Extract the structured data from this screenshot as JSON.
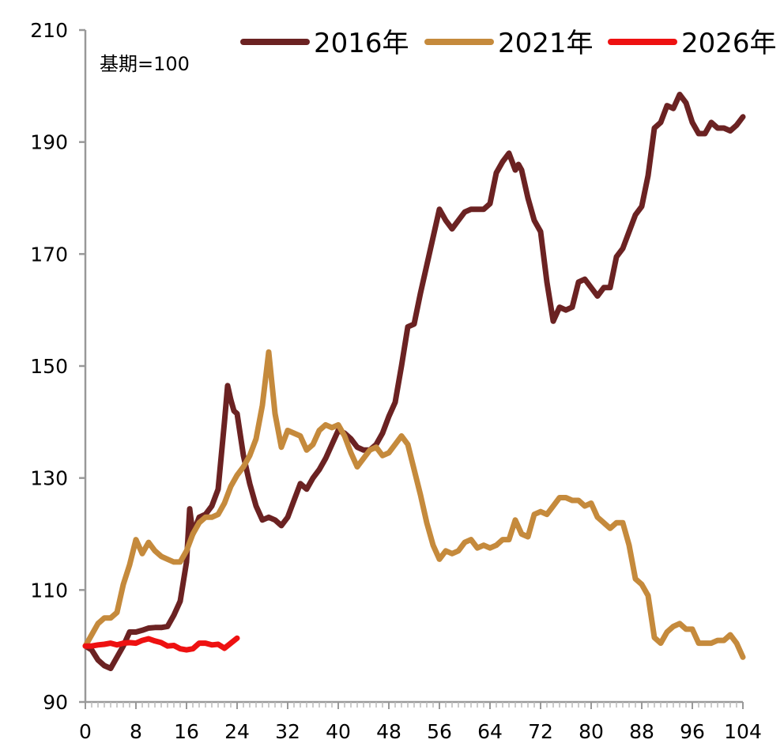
{
  "chart_data": {
    "type": "line",
    "title": "",
    "xlabel": "",
    "ylabel": "",
    "annotation": "基期=100",
    "xlim": [
      0,
      104
    ],
    "ylim": [
      90,
      210
    ],
    "x_ticks": [
      0,
      8,
      16,
      24,
      32,
      40,
      48,
      56,
      64,
      72,
      80,
      88,
      96,
      104
    ],
    "x_tick_labels": [
      "0",
      "8",
      "16",
      "24",
      "32",
      "40",
      "48",
      "56",
      "64",
      "72",
      "80",
      "88",
      "96",
      "104"
    ],
    "y_tick_values": [
      90,
      110,
      130,
      150,
      170,
      190,
      210
    ],
    "y_tick_labels": [
      "90",
      "110",
      "130",
      "150",
      "170",
      "190",
      "210"
    ],
    "grid": false,
    "legend_position": "top-right",
    "series": [
      {
        "name": "2016年",
        "color": "#6b2222",
        "points": [
          [
            0,
            100
          ],
          [
            1,
            99.3
          ],
          [
            2,
            97.5
          ],
          [
            3,
            96.5
          ],
          [
            4,
            96
          ],
          [
            5,
            98
          ],
          [
            6,
            100
          ],
          [
            7,
            102.5
          ],
          [
            8,
            102.5
          ],
          [
            9,
            102.8
          ],
          [
            10,
            103.2
          ],
          [
            11,
            103.3
          ],
          [
            12,
            103.3
          ],
          [
            13,
            103.5
          ],
          [
            14,
            105.5
          ],
          [
            15,
            108
          ],
          [
            16,
            115
          ],
          [
            16.5,
            124.5
          ],
          [
            17,
            120
          ],
          [
            18,
            123
          ],
          [
            19,
            123.5
          ],
          [
            20,
            125
          ],
          [
            21,
            128
          ],
          [
            22,
            140
          ],
          [
            22.5,
            146.5
          ],
          [
            23,
            144
          ],
          [
            23.5,
            142
          ],
          [
            24,
            141.5
          ],
          [
            25,
            134
          ],
          [
            26,
            129
          ],
          [
            27,
            125
          ],
          [
            28,
            122.5
          ],
          [
            29,
            123
          ],
          [
            30,
            122.5
          ],
          [
            31,
            121.5
          ],
          [
            32,
            123
          ],
          [
            33,
            126
          ],
          [
            34,
            129
          ],
          [
            35,
            128
          ],
          [
            36,
            130
          ],
          [
            37,
            131.5
          ],
          [
            38,
            133.5
          ],
          [
            39,
            136
          ],
          [
            40,
            138.5
          ],
          [
            41,
            138
          ],
          [
            42,
            137
          ],
          [
            43,
            135.5
          ],
          [
            44,
            135
          ],
          [
            45,
            135
          ],
          [
            46,
            136
          ],
          [
            47,
            138
          ],
          [
            48,
            141
          ],
          [
            49,
            143.5
          ],
          [
            50,
            150
          ],
          [
            51,
            157
          ],
          [
            52,
            157.5
          ],
          [
            53,
            163
          ],
          [
            54,
            168
          ],
          [
            55,
            173
          ],
          [
            56,
            178
          ],
          [
            57,
            176
          ],
          [
            58,
            174.5
          ],
          [
            59,
            176
          ],
          [
            60,
            177.5
          ],
          [
            61,
            178
          ],
          [
            62,
            178
          ],
          [
            63,
            178
          ],
          [
            64,
            179
          ],
          [
            65,
            184.5
          ],
          [
            66,
            186.5
          ],
          [
            67,
            188
          ],
          [
            68,
            185
          ],
          [
            68.5,
            186
          ],
          [
            69,
            185
          ],
          [
            70,
            180
          ],
          [
            71,
            176
          ],
          [
            72,
            174
          ],
          [
            73,
            165
          ],
          [
            74,
            158
          ],
          [
            75,
            160.5
          ],
          [
            76,
            160
          ],
          [
            77,
            160.5
          ],
          [
            78,
            165
          ],
          [
            79,
            165.5
          ],
          [
            80,
            164
          ],
          [
            81,
            162.5
          ],
          [
            82,
            164
          ],
          [
            83,
            164
          ],
          [
            84,
            169.5
          ],
          [
            85,
            171
          ],
          [
            86,
            174
          ],
          [
            87,
            177
          ],
          [
            88,
            178.5
          ],
          [
            89,
            184
          ],
          [
            90,
            192.5
          ],
          [
            91,
            193.5
          ],
          [
            92,
            196.5
          ],
          [
            93,
            196
          ],
          [
            94,
            198.5
          ],
          [
            95,
            197
          ],
          [
            96,
            193.5
          ],
          [
            97,
            191.5
          ],
          [
            98,
            191.5
          ],
          [
            99,
            193.5
          ],
          [
            100,
            192.5
          ],
          [
            101,
            192.5
          ],
          [
            102,
            192
          ],
          [
            103,
            193
          ],
          [
            104,
            194.5
          ]
        ]
      },
      {
        "name": "2021年",
        "color": "#c58a3c",
        "points": [
          [
            0,
            100
          ],
          [
            1,
            102
          ],
          [
            2,
            104
          ],
          [
            3,
            105
          ],
          [
            4,
            105
          ],
          [
            5,
            106
          ],
          [
            6,
            111
          ],
          [
            7,
            114.5
          ],
          [
            8,
            119
          ],
          [
            9,
            116.5
          ],
          [
            10,
            118.5
          ],
          [
            11,
            117
          ],
          [
            12,
            116
          ],
          [
            13,
            115.5
          ],
          [
            14,
            115
          ],
          [
            15,
            115
          ],
          [
            16,
            117
          ],
          [
            17,
            120
          ],
          [
            18,
            122
          ],
          [
            19,
            123
          ],
          [
            20,
            123
          ],
          [
            21,
            123.5
          ],
          [
            22,
            125.5
          ],
          [
            23,
            128.5
          ],
          [
            24,
            130.5
          ],
          [
            25,
            132
          ],
          [
            26,
            134
          ],
          [
            27,
            137
          ],
          [
            28,
            143
          ],
          [
            29,
            152.5
          ],
          [
            30,
            141.5
          ],
          [
            31,
            135.5
          ],
          [
            32,
            138.5
          ],
          [
            33,
            138
          ],
          [
            34,
            137.5
          ],
          [
            35,
            135
          ],
          [
            36,
            136
          ],
          [
            37,
            138.5
          ],
          [
            38,
            139.5
          ],
          [
            39,
            139
          ],
          [
            40,
            139.5
          ],
          [
            41,
            137.5
          ],
          [
            42,
            134.5
          ],
          [
            43,
            132
          ],
          [
            44,
            133.5
          ],
          [
            45,
            135
          ],
          [
            46,
            135.5
          ],
          [
            47,
            134
          ],
          [
            48,
            134.5
          ],
          [
            49,
            136
          ],
          [
            50,
            137.5
          ],
          [
            51,
            136
          ],
          [
            52,
            131.5
          ],
          [
            53,
            127
          ],
          [
            54,
            122
          ],
          [
            55,
            118
          ],
          [
            56,
            115.5
          ],
          [
            57,
            117
          ],
          [
            58,
            116.5
          ],
          [
            59,
            117
          ],
          [
            60,
            118.5
          ],
          [
            61,
            119
          ],
          [
            62,
            117.5
          ],
          [
            63,
            118
          ],
          [
            64,
            117.5
          ],
          [
            65,
            118
          ],
          [
            66,
            119
          ],
          [
            67,
            119
          ],
          [
            68,
            122.5
          ],
          [
            69,
            120
          ],
          [
            70,
            119.5
          ],
          [
            71,
            123.5
          ],
          [
            72,
            124
          ],
          [
            73,
            123.5
          ],
          [
            74,
            125
          ],
          [
            75,
            126.5
          ],
          [
            76,
            126.5
          ],
          [
            77,
            126
          ],
          [
            78,
            126
          ],
          [
            79,
            125
          ],
          [
            80,
            125.5
          ],
          [
            81,
            123
          ],
          [
            82,
            122
          ],
          [
            83,
            121
          ],
          [
            84,
            122
          ],
          [
            85,
            122
          ],
          [
            86,
            118
          ],
          [
            87,
            112
          ],
          [
            88,
            111
          ],
          [
            89,
            109
          ],
          [
            90,
            101.5
          ],
          [
            91,
            100.5
          ],
          [
            92,
            102.5
          ],
          [
            93,
            103.5
          ],
          [
            94,
            104
          ],
          [
            95,
            103
          ],
          [
            96,
            103
          ],
          [
            97,
            100.5
          ],
          [
            98,
            100.5
          ],
          [
            99,
            100.5
          ],
          [
            100,
            101
          ],
          [
            101,
            101
          ],
          [
            102,
            102
          ],
          [
            103,
            100.5
          ],
          [
            104,
            98
          ]
        ]
      },
      {
        "name": "2026年",
        "color": "#ee1111",
        "points": [
          [
            0,
            100
          ],
          [
            1,
            100
          ],
          [
            2,
            100.2
          ],
          [
            3,
            100.3
          ],
          [
            4,
            100.5
          ],
          [
            5,
            100.2
          ],
          [
            6,
            100.5
          ],
          [
            7,
            100.6
          ],
          [
            8,
            100.5
          ],
          [
            9,
            101
          ],
          [
            10,
            101.3
          ],
          [
            11,
            100.9
          ],
          [
            12,
            100.6
          ],
          [
            13,
            100
          ],
          [
            14,
            100.1
          ],
          [
            15,
            99.5
          ],
          [
            16,
            99.3
          ],
          [
            17,
            99.5
          ],
          [
            18,
            100.5
          ],
          [
            19,
            100.5
          ],
          [
            20,
            100.2
          ],
          [
            21,
            100.3
          ],
          [
            22,
            99.6
          ],
          [
            23,
            100.5
          ],
          [
            24,
            101.4
          ]
        ]
      }
    ]
  }
}
